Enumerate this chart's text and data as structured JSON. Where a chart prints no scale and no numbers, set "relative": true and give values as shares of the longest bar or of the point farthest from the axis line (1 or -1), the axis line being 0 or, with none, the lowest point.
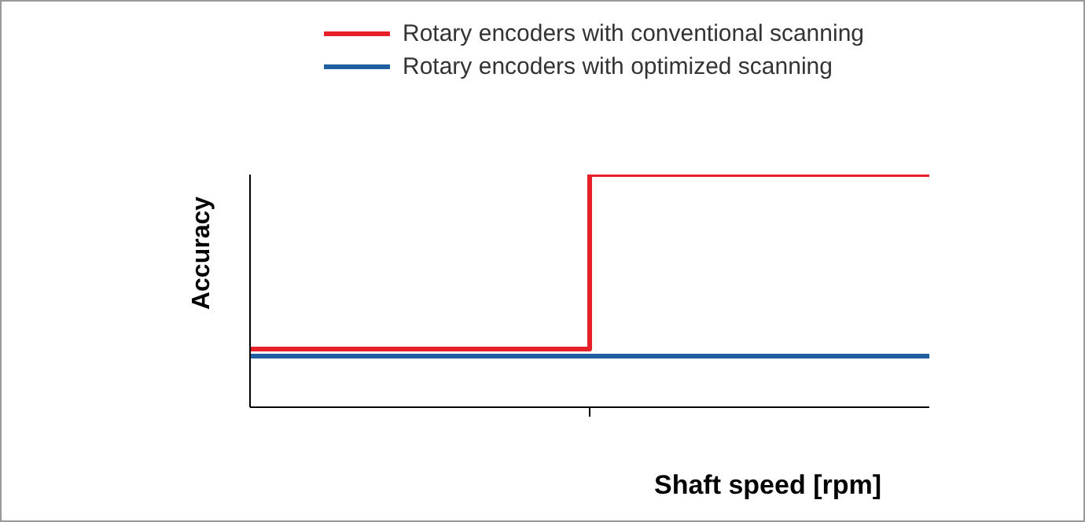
{
  "chart_data": {
    "type": "step",
    "relative": true,
    "xlabel": "Shaft speed [rpm]",
    "ylabel": "Accuracy",
    "categories": [
      null,
      null,
      null
    ],
    "legend": "top right",
    "series": [
      {
        "name": "Rotary encoders with conventional scanning",
        "color": "#e8202a",
        "values": [
          0.25,
          1,
          1
        ]
      },
      {
        "name": "Rotary encoders with optimized scanning",
        "color": "#1f5fa0",
        "values": [
          0.22,
          0.22,
          0.22
        ]
      }
    ]
  }
}
